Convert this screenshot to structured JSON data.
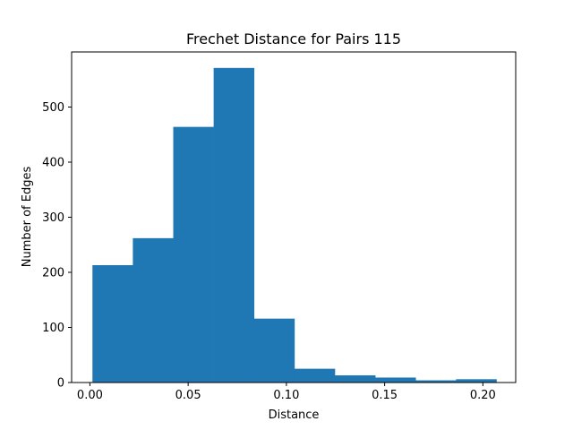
{
  "chart_data": {
    "type": "bar",
    "title": "Frechet Distance for Pairs 115",
    "xlabel": "Distance",
    "ylabel": "Number of Edges",
    "xlim": [
      -0.0093,
      0.2167
    ],
    "ylim": [
      0,
      600
    ],
    "x_ticks": [
      0.0,
      0.05,
      0.1,
      0.15,
      0.2
    ],
    "x_tick_labels": [
      "0.00",
      "0.05",
      "0.10",
      "0.15",
      "0.20"
    ],
    "y_ticks": [
      0,
      100,
      200,
      300,
      400,
      500
    ],
    "y_tick_labels": [
      "0",
      "100",
      "200",
      "300",
      "400",
      "500"
    ],
    "bin_edges": [
      0.0013,
      0.02186,
      0.04242,
      0.06298,
      0.08354,
      0.1041,
      0.12466,
      0.14522,
      0.16578,
      0.18634,
      0.2069
    ],
    "values": [
      213,
      262,
      464,
      571,
      116,
      25,
      13,
      9,
      4,
      6
    ],
    "bar_color": "#1f77b4",
    "grid": false
  }
}
